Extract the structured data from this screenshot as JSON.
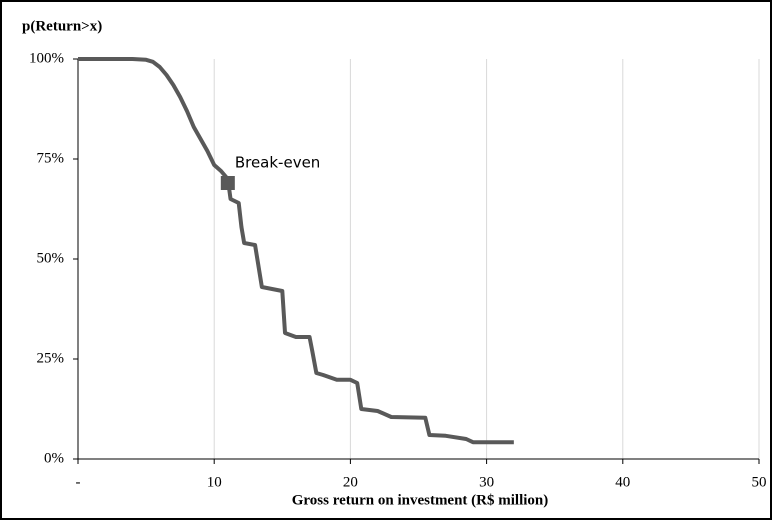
{
  "chart_data": {
    "type": "line",
    "title": "p(Return>x)",
    "x_label": "Gross return on investment (R$ million)",
    "x": [
      0,
      4,
      5,
      5.5,
      6,
      6.5,
      7,
      7.5,
      8,
      8.5,
      9,
      9.5,
      10,
      10.5,
      11,
      11.2,
      11.8,
      12,
      12.2,
      13,
      13.5,
      15,
      15.2,
      16,
      17,
      17.2,
      17.5,
      18,
      19,
      20,
      20.5,
      20.8,
      22,
      23,
      25.5,
      25.8,
      27,
      28.5,
      29,
      32
    ],
    "values": [
      100,
      100,
      99.8,
      99.3,
      98,
      96,
      93.5,
      90.5,
      87,
      83,
      80,
      77,
      73.5,
      72,
      70,
      65,
      64,
      58,
      54,
      53.5,
      43,
      42,
      31.5,
      30.5,
      30.5,
      27,
      21.5,
      21,
      19.8,
      19.8,
      19,
      12.5,
      12,
      10.5,
      10.3,
      6,
      5.8,
      5,
      4.2,
      4.2
    ],
    "color": "#595959",
    "annotation": {
      "text": "Break-even",
      "x": 11,
      "y": 69
    },
    "xlim": [
      0,
      50
    ],
    "xticks": [
      {
        "value": 0,
        "label": "-"
      },
      10,
      20,
      30,
      40,
      50
    ],
    "ylim": [
      0,
      100
    ],
    "yticks": [
      {
        "value": 0,
        "label": "0%"
      },
      {
        "value": 25,
        "label": "25%"
      },
      {
        "value": 50,
        "label": "50%"
      },
      {
        "value": 75,
        "label": "75%"
      },
      {
        "value": 100,
        "label": "100%"
      }
    ],
    "grid": true
  }
}
